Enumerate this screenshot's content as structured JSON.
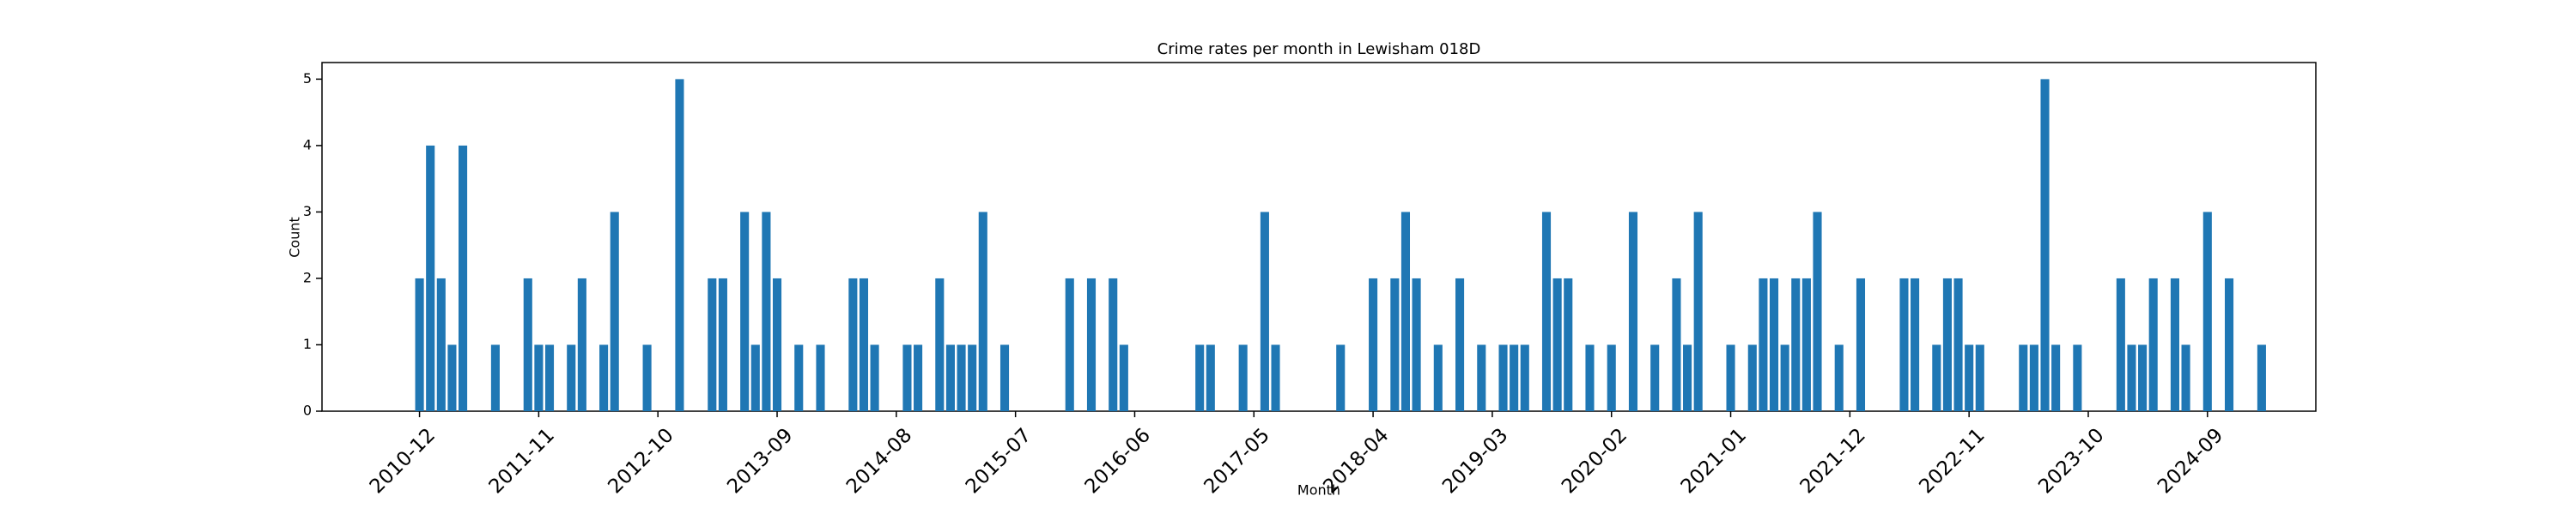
{
  "chart_data": {
    "type": "bar",
    "title": "Crime rates per month in Lewisham 018D",
    "xlabel": "Month",
    "ylabel": "Count",
    "color": "#1f77b4",
    "x": [
      "2010-12",
      "2011-01",
      "2011-02",
      "2011-03",
      "2011-04",
      "2011-07",
      "2011-10",
      "2011-11",
      "2011-12",
      "2012-02",
      "2012-03",
      "2012-05",
      "2012-06",
      "2012-09",
      "2012-12",
      "2013-03",
      "2013-04",
      "2013-06",
      "2013-07",
      "2013-08",
      "2013-09",
      "2013-11",
      "2014-01",
      "2014-04",
      "2014-05",
      "2014-06",
      "2014-09",
      "2014-10",
      "2014-12",
      "2015-01",
      "2015-02",
      "2015-03",
      "2015-04",
      "2015-06",
      "2015-12",
      "2016-02",
      "2016-04",
      "2016-05",
      "2016-12",
      "2017-01",
      "2017-04",
      "2017-06",
      "2017-07",
      "2018-01",
      "2018-04",
      "2018-06",
      "2018-07",
      "2018-08",
      "2018-10",
      "2018-12",
      "2019-02",
      "2019-04",
      "2019-05",
      "2019-06",
      "2019-08",
      "2019-09",
      "2019-10",
      "2019-12",
      "2020-02",
      "2020-04",
      "2020-06",
      "2020-08",
      "2020-09",
      "2020-10",
      "2021-01",
      "2021-03",
      "2021-04",
      "2021-05",
      "2021-06",
      "2021-07",
      "2021-08",
      "2021-09",
      "2021-11",
      "2022-01",
      "2022-05",
      "2022-06",
      "2022-08",
      "2022-09",
      "2022-10",
      "2022-11",
      "2022-12",
      "2023-04",
      "2023-05",
      "2023-06",
      "2023-07",
      "2023-09",
      "2024-01",
      "2024-02",
      "2024-03",
      "2024-04",
      "2024-06",
      "2024-07",
      "2024-09",
      "2024-11",
      "2025-02"
    ],
    "values": [
      2,
      4,
      2,
      1,
      4,
      1,
      2,
      1,
      1,
      1,
      2,
      1,
      3,
      1,
      5,
      2,
      2,
      3,
      1,
      3,
      2,
      1,
      1,
      2,
      2,
      1,
      1,
      1,
      2,
      1,
      1,
      1,
      3,
      1,
      2,
      2,
      2,
      1,
      1,
      1,
      1,
      3,
      1,
      1,
      2,
      2,
      3,
      2,
      1,
      2,
      1,
      1,
      1,
      1,
      3,
      2,
      2,
      1,
      1,
      3,
      1,
      2,
      1,
      3,
      1,
      1,
      2,
      2,
      1,
      2,
      2,
      3,
      1,
      2,
      2,
      2,
      1,
      2,
      2,
      1,
      1,
      1,
      1,
      5,
      1,
      1,
      2,
      1,
      1,
      2,
      2,
      1,
      3,
      2,
      1
    ],
    "xlim": [
      "2010-03",
      "2025-07"
    ],
    "xticks": [
      "2010-12",
      "2011-11",
      "2012-10",
      "2013-09",
      "2014-08",
      "2015-07",
      "2016-06",
      "2017-05",
      "2018-04",
      "2019-03",
      "2020-02",
      "2021-01",
      "2021-12",
      "2022-11",
      "2023-10",
      "2024-09"
    ],
    "ylim": [
      0,
      5.25
    ],
    "yticks": [
      0,
      1,
      2,
      3,
      4,
      5
    ]
  }
}
